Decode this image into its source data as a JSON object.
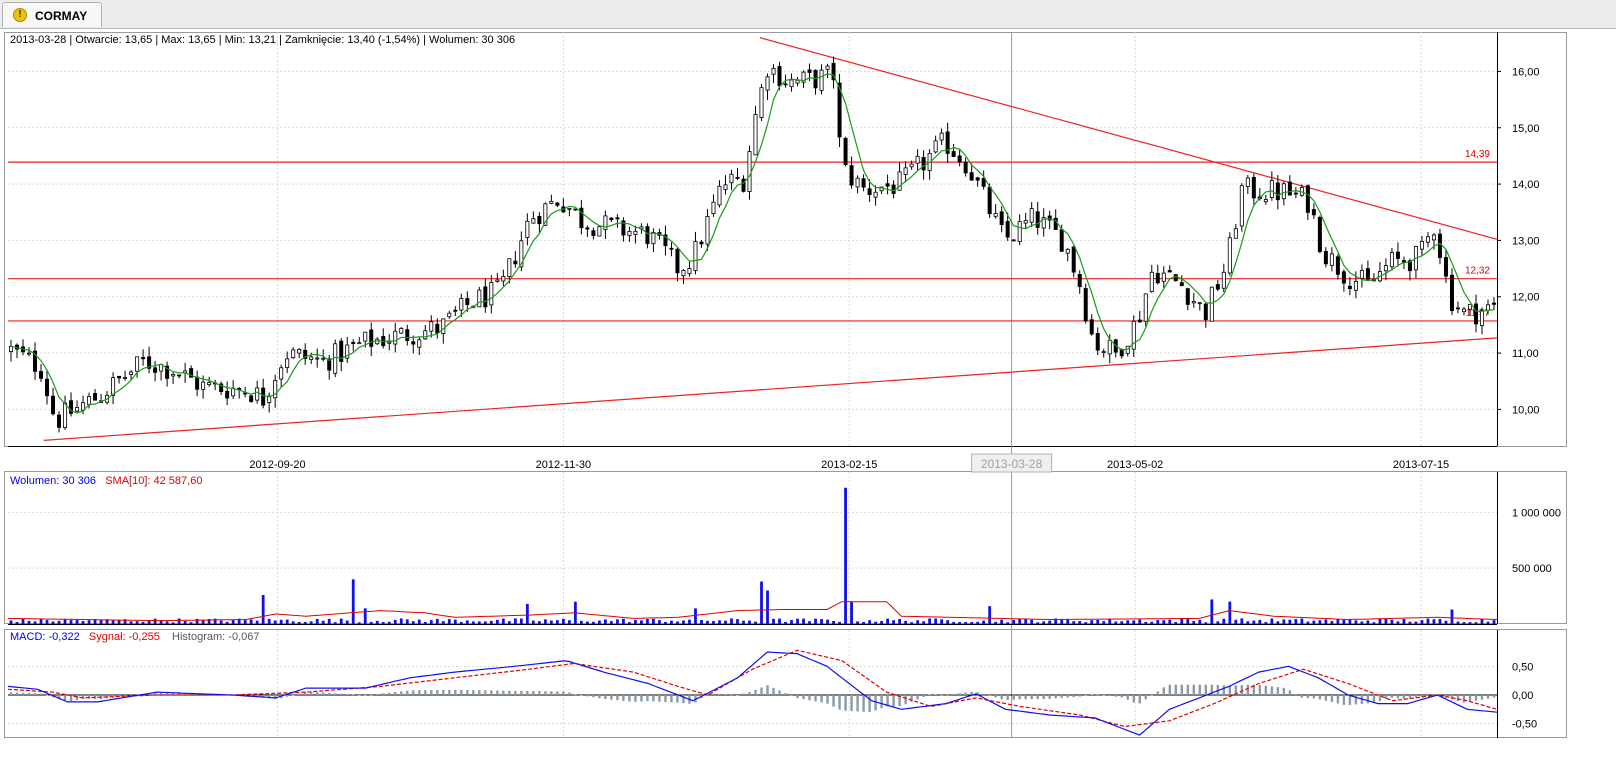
{
  "tab": {
    "title": "CORMAY",
    "icon": "warning-icon"
  },
  "header": {
    "ohlc": "2013-03-28 | Otwarcie: 13,65 | Max: 13,65 | Min: 13,21 | Zamknięcie: 13,40 (-1,54%)  | Wolumen: 30 306"
  },
  "chart_data": [
    {
      "type": "candlestick",
      "x_ticks": [
        "2012-09-20",
        "2012-11-30",
        "2013-02-15",
        "2013-05-02",
        "2013-07-15"
      ],
      "cursor_label": "2013-03-28",
      "y_ticks": [
        "10,00",
        "11,00",
        "12,00",
        "13,00",
        "14,00",
        "15,00",
        "16,00"
      ],
      "ylim": [
        9.35,
        16.7
      ],
      "hlines": [
        {
          "value": 14.39,
          "label": "14,39"
        },
        {
          "value": 12.32,
          "label": "12,32"
        },
        {
          "value": 11.57,
          "label": "11,57"
        }
      ],
      "trendlines": [
        {
          "from": [
            0.024,
            9.45
          ],
          "to": [
            1.0,
            11.27
          ]
        },
        {
          "from": [
            0.505,
            16.6
          ],
          "to": [
            1.0,
            13.02
          ]
        }
      ],
      "close_anchors": [
        [
          0.0,
          11.05
        ],
        [
          0.02,
          10.75
        ],
        [
          0.03,
          9.8
        ],
        [
          0.06,
          10.25
        ],
        [
          0.09,
          10.85
        ],
        [
          0.11,
          10.7
        ],
        [
          0.13,
          10.4
        ],
        [
          0.16,
          10.35
        ],
        [
          0.17,
          10.2
        ],
        [
          0.185,
          11.0
        ],
        [
          0.21,
          10.85
        ],
        [
          0.24,
          11.2
        ],
        [
          0.26,
          11.3
        ],
        [
          0.29,
          11.45
        ],
        [
          0.31,
          11.9
        ],
        [
          0.33,
          12.1
        ],
        [
          0.35,
          13.4
        ],
        [
          0.37,
          13.75
        ],
        [
          0.385,
          13.35
        ],
        [
          0.41,
          13.2
        ],
        [
          0.43,
          13.1
        ],
        [
          0.45,
          12.5
        ],
        [
          0.46,
          12.7
        ],
        [
          0.48,
          14.0
        ],
        [
          0.495,
          14.1
        ],
        [
          0.5,
          15.0
        ],
        [
          0.51,
          16.1
        ],
        [
          0.525,
          15.8
        ],
        [
          0.54,
          15.85
        ],
        [
          0.555,
          15.95
        ],
        [
          0.56,
          14.3
        ],
        [
          0.575,
          13.9
        ],
        [
          0.6,
          14.0
        ],
        [
          0.63,
          14.75
        ],
        [
          0.645,
          14.35
        ],
        [
          0.67,
          13.0
        ],
        [
          0.69,
          13.4
        ],
        [
          0.71,
          13.0
        ],
        [
          0.72,
          12.3
        ],
        [
          0.73,
          11.2
        ],
        [
          0.745,
          11.0
        ],
        [
          0.76,
          11.6
        ],
        [
          0.77,
          12.5
        ],
        [
          0.79,
          12.2
        ],
        [
          0.805,
          11.7
        ],
        [
          0.82,
          12.6
        ],
        [
          0.83,
          13.9
        ],
        [
          0.86,
          13.85
        ],
        [
          0.875,
          13.7
        ],
        [
          0.885,
          12.8
        ],
        [
          0.9,
          12.4
        ],
        [
          0.915,
          12.2
        ],
        [
          0.93,
          12.6
        ],
        [
          0.95,
          12.7
        ],
        [
          0.96,
          13.3
        ],
        [
          0.97,
          12.0
        ],
        [
          0.98,
          11.7
        ],
        [
          1.0,
          11.8
        ]
      ],
      "sma_window": 5
    },
    {
      "type": "bar",
      "legend": [
        {
          "text": "Wolumen: 30 306",
          "color": "#0000ee"
        },
        {
          "text": "SMA[10]: 42 587,60",
          "color": "#e00000"
        }
      ],
      "y_ticks": [
        "500 000",
        "1 000 000"
      ],
      "ylim": [
        0,
        1200000
      ],
      "base_volume": 30000,
      "spikes": [
        [
          0.17,
          260000
        ],
        [
          0.23,
          400000
        ],
        [
          0.24,
          140000
        ],
        [
          0.35,
          180000
        ],
        [
          0.38,
          200000
        ],
        [
          0.46,
          140000
        ],
        [
          0.5,
          240000
        ],
        [
          0.505,
          380000
        ],
        [
          0.51,
          300000
        ],
        [
          0.562,
          1220000
        ],
        [
          0.565,
          200000
        ],
        [
          0.66,
          160000
        ],
        [
          0.81,
          220000
        ],
        [
          0.82,
          200000
        ],
        [
          0.97,
          130000
        ]
      ],
      "sma_anchors": [
        [
          0.0,
          50000
        ],
        [
          0.05,
          40000
        ],
        [
          0.1,
          30000
        ],
        [
          0.16,
          40000
        ],
        [
          0.18,
          90000
        ],
        [
          0.2,
          70000
        ],
        [
          0.25,
          120000
        ],
        [
          0.28,
          100000
        ],
        [
          0.3,
          60000
        ],
        [
          0.35,
          80000
        ],
        [
          0.38,
          100000
        ],
        [
          0.42,
          50000
        ],
        [
          0.45,
          60000
        ],
        [
          0.49,
          120000
        ],
        [
          0.52,
          130000
        ],
        [
          0.55,
          130000
        ],
        [
          0.56,
          200000
        ],
        [
          0.59,
          200000
        ],
        [
          0.6,
          70000
        ],
        [
          0.7,
          40000
        ],
        [
          0.8,
          50000
        ],
        [
          0.82,
          120000
        ],
        [
          0.85,
          70000
        ],
        [
          0.9,
          40000
        ],
        [
          0.96,
          60000
        ],
        [
          1.0,
          40000
        ]
      ]
    },
    {
      "type": "line",
      "legend": [
        {
          "text": "MACD: -0,322",
          "color": "#0000ee"
        },
        {
          "text": "Sygnał: -0,255",
          "color": "#e00000"
        },
        {
          "text": "Histogram: -0,067",
          "color": "#555555"
        }
      ],
      "y_ticks": [
        "-0,50",
        "0,00",
        "0,50"
      ],
      "ylim": [
        -0.75,
        0.82
      ],
      "macd_anchors": [
        [
          0.0,
          0.15
        ],
        [
          0.02,
          0.1
        ],
        [
          0.04,
          -0.12
        ],
        [
          0.06,
          -0.12
        ],
        [
          0.1,
          0.05
        ],
        [
          0.15,
          0.0
        ],
        [
          0.18,
          -0.05
        ],
        [
          0.2,
          0.12
        ],
        [
          0.24,
          0.12
        ],
        [
          0.27,
          0.3
        ],
        [
          0.3,
          0.4
        ],
        [
          0.34,
          0.5
        ],
        [
          0.375,
          0.6
        ],
        [
          0.4,
          0.4
        ],
        [
          0.43,
          0.2
        ],
        [
          0.45,
          0.0
        ],
        [
          0.46,
          -0.1
        ],
        [
          0.49,
          0.3
        ],
        [
          0.51,
          0.75
        ],
        [
          0.53,
          0.72
        ],
        [
          0.55,
          0.5
        ],
        [
          0.58,
          -0.1
        ],
        [
          0.6,
          -0.25
        ],
        [
          0.63,
          -0.15
        ],
        [
          0.65,
          0.02
        ],
        [
          0.67,
          -0.25
        ],
        [
          0.7,
          -0.35
        ],
        [
          0.73,
          -0.4
        ],
        [
          0.76,
          -0.7
        ],
        [
          0.78,
          -0.25
        ],
        [
          0.8,
          -0.05
        ],
        [
          0.82,
          0.15
        ],
        [
          0.84,
          0.4
        ],
        [
          0.86,
          0.5
        ],
        [
          0.88,
          0.3
        ],
        [
          0.9,
          0.0
        ],
        [
          0.92,
          -0.15
        ],
        [
          0.94,
          -0.15
        ],
        [
          0.96,
          0.0
        ],
        [
          0.98,
          -0.25
        ],
        [
          1.0,
          -0.3
        ]
      ],
      "signal_anchors": [
        [
          0.0,
          0.1
        ],
        [
          0.03,
          0.05
        ],
        [
          0.05,
          -0.05
        ],
        [
          0.1,
          0.0
        ],
        [
          0.15,
          0.0
        ],
        [
          0.2,
          0.05
        ],
        [
          0.25,
          0.15
        ],
        [
          0.3,
          0.3
        ],
        [
          0.35,
          0.45
        ],
        [
          0.38,
          0.55
        ],
        [
          0.42,
          0.4
        ],
        [
          0.45,
          0.15
        ],
        [
          0.47,
          0.0
        ],
        [
          0.5,
          0.45
        ],
        [
          0.53,
          0.78
        ],
        [
          0.56,
          0.6
        ],
        [
          0.59,
          0.05
        ],
        [
          0.62,
          -0.2
        ],
        [
          0.65,
          -0.05
        ],
        [
          0.68,
          -0.2
        ],
        [
          0.72,
          -0.35
        ],
        [
          0.75,
          -0.55
        ],
        [
          0.78,
          -0.45
        ],
        [
          0.81,
          -0.15
        ],
        [
          0.84,
          0.2
        ],
        [
          0.87,
          0.45
        ],
        [
          0.9,
          0.2
        ],
        [
          0.93,
          -0.1
        ],
        [
          0.96,
          0.0
        ],
        [
          0.98,
          -0.1
        ],
        [
          1.0,
          -0.25
        ]
      ]
    }
  ]
}
